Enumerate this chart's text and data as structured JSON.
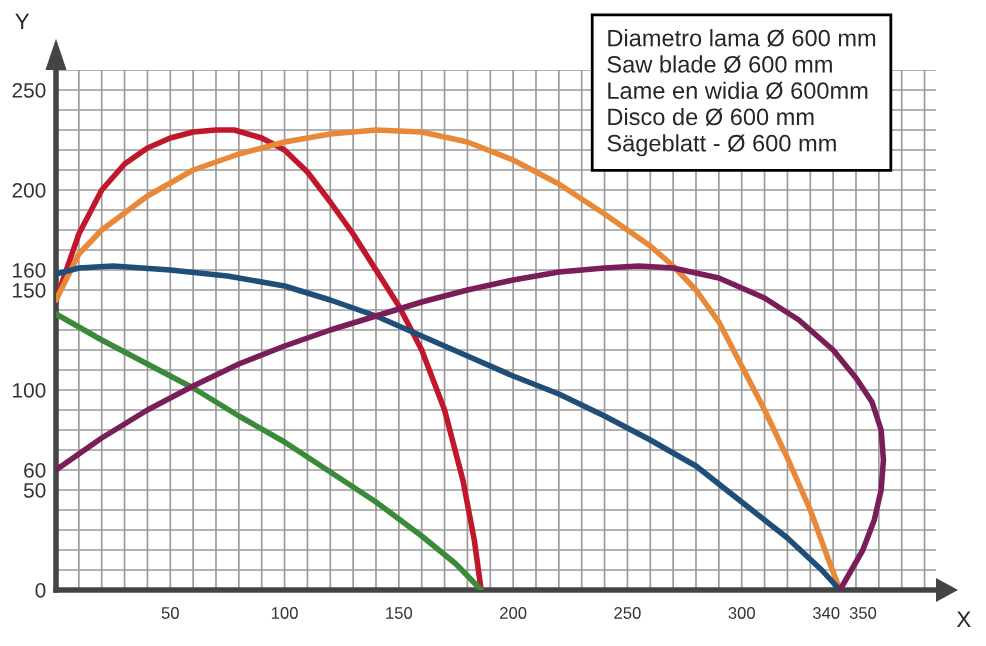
{
  "chart_data": {
    "type": "line",
    "xlabel": "X",
    "ylabel": "Y",
    "xlim": [
      0,
      385
    ],
    "ylim": [
      0,
      260
    ],
    "xticks": [
      {
        "value": 10,
        "label": null
      },
      {
        "value": 20,
        "label": null
      },
      {
        "value": 30,
        "label": null
      },
      {
        "value": 40,
        "label": null
      },
      50,
      {
        "value": 60,
        "label": null
      },
      {
        "value": 70,
        "label": null
      },
      {
        "value": 80,
        "label": null
      },
      {
        "value": 90,
        "label": null
      },
      100,
      {
        "value": 110,
        "label": null
      },
      {
        "value": 120,
        "label": null
      },
      {
        "value": 130,
        "label": null
      },
      {
        "value": 140,
        "label": null
      },
      150,
      {
        "value": 160,
        "label": null
      },
      {
        "value": 170,
        "label": null
      },
      {
        "value": 180,
        "label": null
      },
      {
        "value": 190,
        "label": null
      },
      200,
      {
        "value": 210,
        "label": null
      },
      {
        "value": 220,
        "label": null
      },
      {
        "value": 230,
        "label": null
      },
      {
        "value": 240,
        "label": null
      },
      250,
      {
        "value": 260,
        "label": null
      },
      {
        "value": 270,
        "label": null
      },
      {
        "value": 280,
        "label": null
      },
      {
        "value": 290,
        "label": null
      },
      300,
      {
        "value": 310,
        "label": null
      },
      {
        "value": 320,
        "label": null
      },
      {
        "value": 330,
        "label": null
      },
      340,
      350,
      {
        "value": 360,
        "label": null
      },
      {
        "value": 370,
        "label": null
      },
      {
        "value": 380,
        "label": null
      }
    ],
    "yticks": [
      0,
      {
        "value": 10,
        "label": null
      },
      {
        "value": 20,
        "label": null
      },
      {
        "value": 30,
        "label": null
      },
      {
        "value": 40,
        "label": null
      },
      50,
      60,
      {
        "value": 70,
        "label": null
      },
      {
        "value": 80,
        "label": null
      },
      {
        "value": 90,
        "label": null
      },
      100,
      {
        "value": 110,
        "label": null
      },
      {
        "value": 120,
        "label": null
      },
      {
        "value": 130,
        "label": null
      },
      {
        "value": 140,
        "label": null
      },
      150,
      160,
      {
        "value": 170,
        "label": null
      },
      {
        "value": 180,
        "label": null
      },
      {
        "value": 190,
        "label": null
      },
      200,
      {
        "value": 210,
        "label": null
      },
      {
        "value": 220,
        "label": null
      },
      {
        "value": 230,
        "label": null
      },
      {
        "value": 240,
        "label": null
      },
      250,
      {
        "value": 260,
        "label": null
      }
    ],
    "grid": true,
    "marker": "none",
    "line_style": "solid",
    "legend": false,
    "annotations": [
      "Diametro lama Ø 600 mm",
      "Saw blade Ø 600 mm",
      "Lame en widia Ø 600mm",
      "Disco de Ø 600 mm",
      "Sägeblatt - Ø 600 mm"
    ],
    "series": [
      {
        "color": "#c0172c",
        "x": [
          0,
          10,
          20,
          30,
          40,
          50,
          60,
          70,
          78,
          90,
          100,
          110,
          120,
          130,
          140,
          150,
          160,
          170,
          178,
          183,
          186
        ],
        "values": [
          145,
          178,
          200,
          213,
          221,
          226,
          229,
          230,
          230,
          226,
          220,
          209,
          194,
          178,
          160,
          142,
          120,
          90,
          55,
          25,
          0
        ]
      },
      {
        "color": "#e8893a",
        "x": [
          0,
          10,
          20,
          40,
          60,
          80,
          100,
          120,
          140,
          160,
          180,
          200,
          220,
          240,
          260,
          270,
          280,
          290,
          300,
          310,
          320,
          330,
          338,
          343
        ],
        "values": [
          145,
          168,
          180,
          197,
          210,
          218,
          224,
          228,
          230,
          229,
          224,
          215,
          203,
          188,
          172,
          162,
          150,
          134,
          112,
          90,
          66,
          40,
          15,
          0
        ]
      },
      {
        "color": "#1f4e79",
        "x": [
          0,
          10,
          25,
          50,
          75,
          100,
          120,
          140,
          160,
          180,
          200,
          220,
          240,
          260,
          280,
          300,
          320,
          335,
          343
        ],
        "values": [
          158,
          161,
          162,
          160,
          157,
          152,
          145,
          137,
          127,
          117,
          107,
          98,
          87,
          75,
          62,
          44,
          26,
          10,
          0
        ]
      },
      {
        "color": "#3a8a3a",
        "x": [
          0,
          20,
          40,
          60,
          80,
          100,
          120,
          140,
          160,
          175,
          186
        ],
        "values": [
          138,
          125,
          113,
          101,
          87,
          74,
          59,
          44,
          27,
          13,
          0
        ]
      },
      {
        "color": "#7a1e5a",
        "x": [
          0,
          20,
          40,
          60,
          80,
          100,
          120,
          140,
          160,
          180,
          200,
          220,
          240,
          255,
          270,
          290,
          310,
          325,
          340,
          350,
          357,
          361,
          362,
          361,
          358,
          353,
          347,
          343
        ],
        "values": [
          60,
          76,
          90,
          102,
          113,
          122,
          130,
          137,
          144,
          150,
          155,
          159,
          161,
          162,
          161,
          156,
          146,
          135,
          120,
          106,
          94,
          80,
          65,
          50,
          35,
          20,
          8,
          0
        ]
      }
    ]
  }
}
